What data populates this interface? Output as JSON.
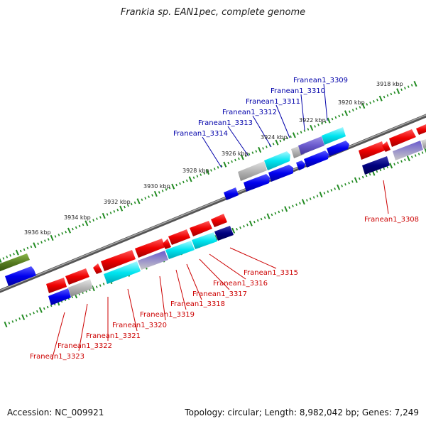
{
  "title": "Frankia sp. EAN1pec, complete genome",
  "footer": {
    "accession": "Accession: NC_009921",
    "summary": "Topology: circular; Length: 8,982,042 bp; Genes: 7,249"
  },
  "colors": {
    "forward_gene": "#0000ee",
    "reverse_gene": "#ee0000",
    "cyan_gene": "#00e5f0",
    "purple_gene": "#6a5acd",
    "navy_gene": "#00007f",
    "gray_gene": "#b5b5b5",
    "olive_gene": "#557a1f",
    "backbone": "#888888",
    "tick": "#228b22"
  },
  "kbp_labels": [
    "3918 kbp",
    "3920 kbp",
    "3922 kbp",
    "3924 kbp",
    "3926 kbp",
    "3928 kbp",
    "3930 kbp",
    "3932 kbp",
    "3934 kbp",
    "3936 kbp"
  ],
  "gene_labels_top": [
    "Franean1_3309",
    "Franean1_3310",
    "Franean1_3311",
    "Franean1_3312",
    "Franean1_3313",
    "Franean1_3314"
  ],
  "gene_labels_right": [
    "Franean1_3308"
  ],
  "gene_labels_bottom": [
    "Franean1_3315",
    "Franean1_3316",
    "Franean1_3317",
    "Franean1_3318",
    "Franean1_3319",
    "Franean1_3320",
    "Franean1_3321",
    "Franean1_3322",
    "Franean1_3323"
  ]
}
